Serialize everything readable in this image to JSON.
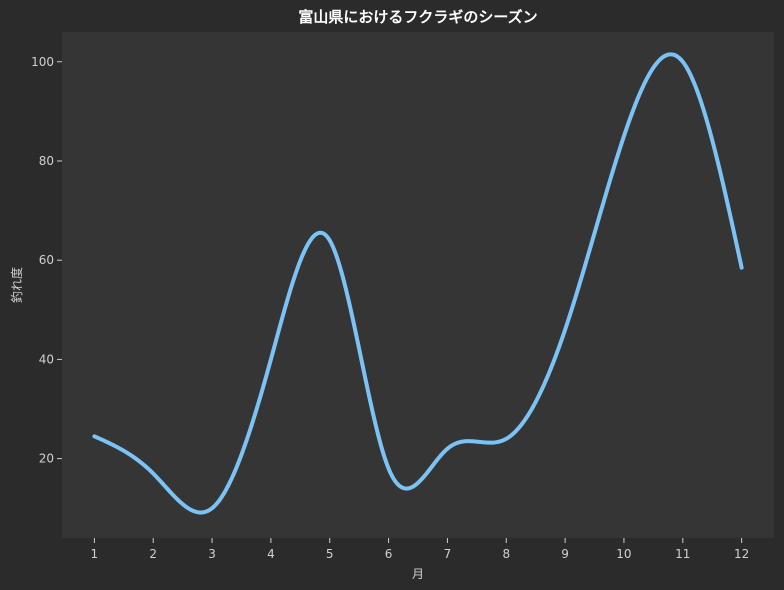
{
  "chart_data": {
    "type": "line",
    "title": "富山県におけるフクラギのシーズン",
    "xlabel": "月",
    "ylabel": "釣れ度",
    "x": [
      1,
      2,
      3,
      4,
      5,
      6,
      7,
      8,
      9,
      10,
      11,
      12
    ],
    "y": [
      24.5,
      17,
      10,
      40,
      64,
      18,
      22,
      24,
      46,
      85,
      100,
      58.5
    ],
    "xlim": [
      0.45,
      12.55
    ],
    "ylim": [
      4,
      106
    ],
    "x_ticks": [
      "1",
      "2",
      "3",
      "4",
      "5",
      "6",
      "7",
      "8",
      "9",
      "10",
      "11",
      "12"
    ],
    "y_ticks": [
      20,
      40,
      60,
      80,
      100
    ],
    "grid": false,
    "smooth": true,
    "colors": {
      "background": "#2b2b2b",
      "plot_area": "#353535",
      "line": "#7cc3f5",
      "text": "#d0d0d0",
      "title": "#ffffff"
    }
  }
}
